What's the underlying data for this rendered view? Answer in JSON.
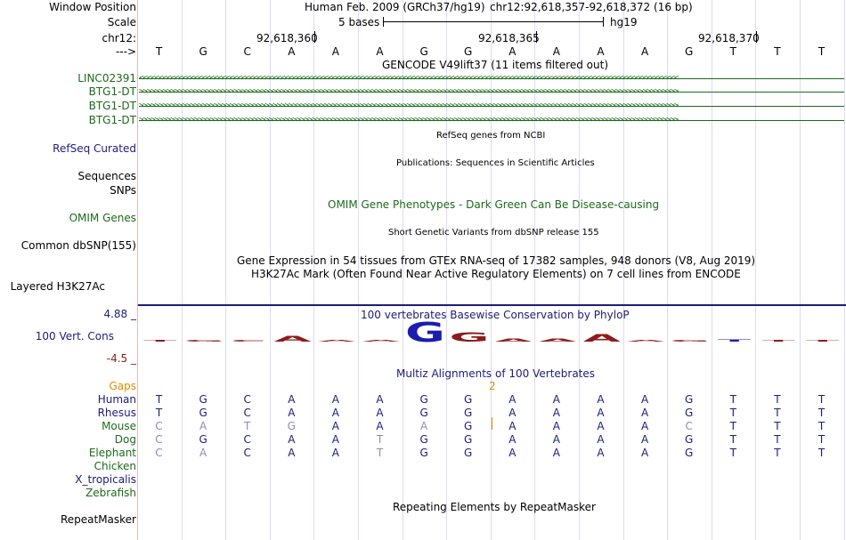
{
  "labels": {
    "window_position": "Window Position",
    "scale": "Scale",
    "chrom": "chr12:",
    "strand": "--->",
    "linc": "LINC02391",
    "btg1a": "BTG1-DT",
    "btg1b": "BTG1-DT",
    "btg1c": "BTG1-DT",
    "refseq": "RefSeq Curated",
    "sequences": "Sequences",
    "snps": "SNPs",
    "omim": "OMIM Genes",
    "dbsnp": "Common dbSNP(155)",
    "h3k27ac": "Layered H3K27Ac",
    "cons_max": "4.88 _",
    "cons_name": "100 Vert. Cons",
    "cons_min": "-4.5 _",
    "gaps": "Gaps",
    "human": "Human",
    "rhesus": "Rhesus",
    "mouse": "Mouse",
    "dog": "Dog",
    "elephant": "Elephant",
    "chicken": "Chicken",
    "xtrop": "X_tropicalis",
    "zebrafish": "Zebrafish",
    "repeatmasker": "RepeatMasker"
  },
  "titles": {
    "assembly": "Human Feb. 2009 (GRCh37/hg19)",
    "position": "chr12:92,618,357-92,618,372 (16 bp)",
    "scale_bar": "5 bases",
    "scale_db": "hg19",
    "gencode": "GENCODE V49lift37 (11 items filtered out)",
    "refseq": "RefSeq genes from NCBI",
    "publications": "Publications: Sequences in Scientific Articles",
    "omim": "OMIM Gene Phenotypes - Dark Green Can Be Disease-causing",
    "dbsnp": "Short Genetic Variants from dbSNP release 155",
    "gtex": "Gene Expression in 54 tissues from GTEx RNA-seq of 17382 samples, 948 donors (V8, Aug 2019)",
    "h3k27ac": "H3K27Ac Mark (Often Found Near Active Regulatory Elements) on 7 cell lines from ENCODE",
    "phylop": "100 vertebrates Basewise Conservation by PhyloP",
    "multiz": "Multiz Alignments of 100 Vertebrates",
    "gap_count": "2",
    "repeatmasker": "Repeating Elements by RepeatMasker"
  },
  "ruler": {
    "tick1": "92,618,360",
    "tick2": "92,618,365",
    "tick3": "92,618,370"
  },
  "gene_arrows": {
    "reverse": "<<<<<<<<<<<<<<<<<<<<<<<<<<<<<<<<<<<<<<<<<<<<<<<<<<<<<<<<<<<<<<<<<<<<<<<<<<<<<<<<<<<<<<<<<<<<<<<<<<<<<<<<<<<<<<<<<<<<<<<<<<<<<<<<<<<<<<<<<",
    "forward": ">>>>>>>>>>>>>>>>>>>>>>>>>>>>>>>>>>>>>>>>>>>>>>>>>>>>>>>>>>>>>>>>>>>>>>>>>>>>>>>>>>>>>>>>>>>>>>>>>>>>>>>>>>>>>>>>>>>>>>>>>>>>>>>>>>>>>>>>>"
  },
  "sequence": [
    "T",
    "G",
    "C",
    "A",
    "A",
    "A",
    "G",
    "G",
    "A",
    "A",
    "A",
    "A",
    "G",
    "T",
    "T",
    "T"
  ],
  "alignment": {
    "human": [
      "T",
      "G",
      "C",
      "A",
      "A",
      "A",
      "G",
      "G",
      "A",
      "A",
      "A",
      "A",
      "G",
      "T",
      "T",
      "T"
    ],
    "rhesus": [
      "T",
      "G",
      "C",
      "A",
      "A",
      "A",
      "G",
      "G",
      "A",
      "A",
      "A",
      "A",
      "G",
      "T",
      "T",
      "T"
    ],
    "mouse": [
      "C",
      "A",
      "T",
      "G",
      "A",
      "A",
      "A",
      "G",
      "A",
      "A",
      "A",
      "A",
      "C",
      "T",
      "T",
      "T"
    ],
    "dog": [
      "C",
      "G",
      "C",
      "A",
      "A",
      "T",
      "G",
      "G",
      "A",
      "A",
      "A",
      "A",
      "G",
      "T",
      "T",
      "T"
    ],
    "elephant": [
      "C",
      "A",
      "C",
      "A",
      "A",
      "T",
      "G",
      "G",
      "A",
      "A",
      "A",
      "A",
      "G",
      "T",
      "T",
      "T"
    ]
  },
  "mismatch": {
    "mouse": [
      1,
      1,
      1,
      1,
      0,
      0,
      1,
      0,
      0,
      0,
      0,
      0,
      1,
      0,
      0,
      0
    ],
    "dog": [
      1,
      0,
      0,
      0,
      0,
      1,
      0,
      0,
      0,
      0,
      0,
      0,
      0,
      0,
      0,
      0
    ],
    "elephant": [
      1,
      1,
      0,
      0,
      0,
      1,
      0,
      0,
      0,
      0,
      0,
      0,
      0,
      0,
      0,
      0
    ]
  },
  "phylop_scores": [
    0.1,
    0.1,
    0.3,
    1.0,
    0.3,
    0.0,
    3.4,
    1.6,
    0.5,
    0.5,
    1.3,
    0.2,
    0.3,
    -0.4,
    0.3,
    0.1
  ],
  "phylop_range": [
    -4.5,
    4.88
  ],
  "colors": {
    "label_blue": "#1c1c7c",
    "gene_green": "#1b6b1b",
    "omim_green": "#1b6b1b",
    "gaps_orange": "#e08a00",
    "cons_red": "#8b1c1c",
    "cons_blue": "#1c1cb0",
    "mismatch_gray": "#8c8cb4",
    "grid": "#dcdcf0"
  }
}
